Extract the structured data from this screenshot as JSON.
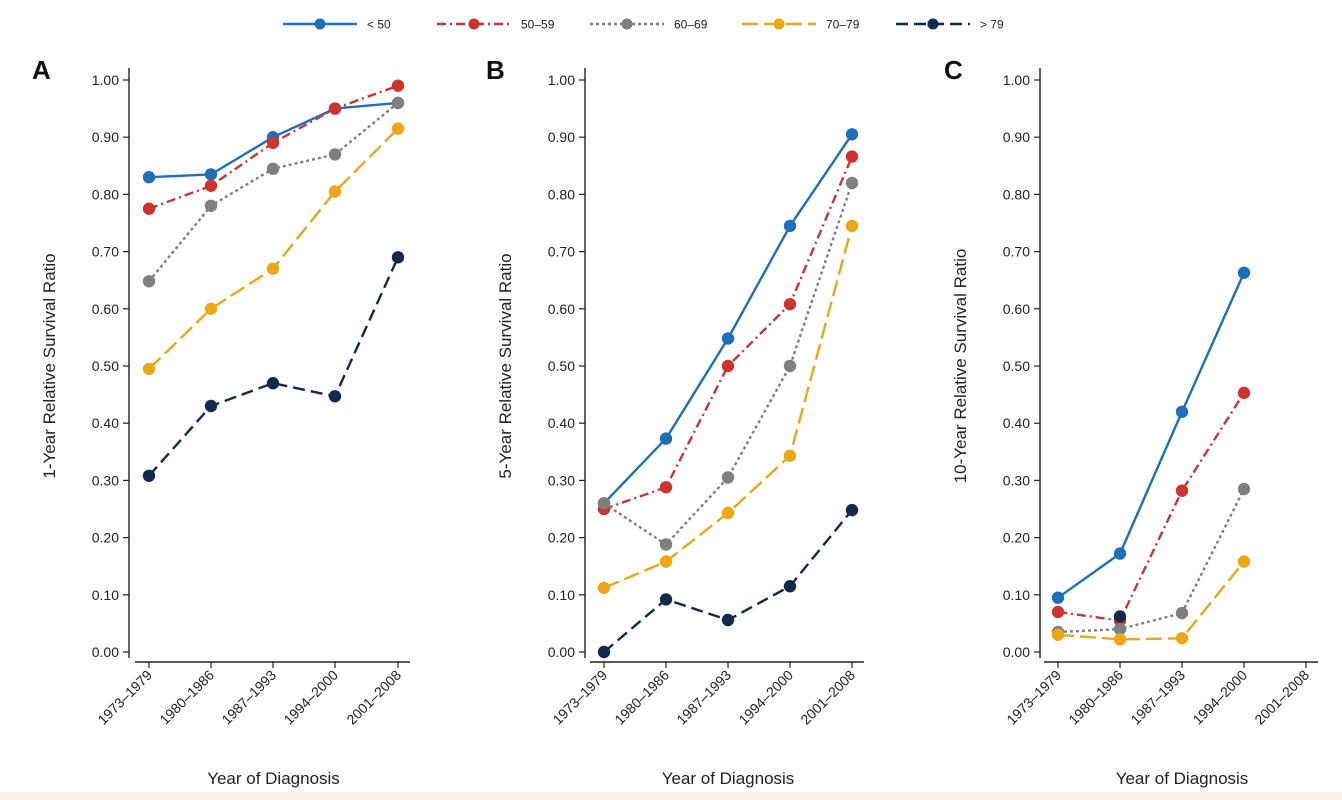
{
  "legend": [
    {
      "label": "< 50",
      "color": "#1f6fb8",
      "dash": "solid"
    },
    {
      "label": "50–59",
      "color": "#cc3333",
      "dash": "dashdot"
    },
    {
      "label": "60–69",
      "color": "#7f7f7f",
      "dash": "dotted"
    },
    {
      "label": "70–79",
      "color": "#e8a817",
      "dash": "longdash"
    },
    {
      "label": "> 79",
      "color": "#14294a",
      "dash": "dashed"
    }
  ],
  "chart_data": [
    {
      "type": "line",
      "panel": "A",
      "title": "",
      "xlabel": "Year of Diagnosis",
      "ylabel": "1-Year Relative Survival Ratio",
      "categories": [
        "1973–1979",
        "1980–1986",
        "1987–1993",
        "1994–2000",
        "2001–2008"
      ],
      "ylim": [
        0,
        1
      ],
      "yticks": [
        "0.00",
        "0.10",
        "0.20",
        "0.30",
        "0.40",
        "0.50",
        "0.60",
        "0.70",
        "0.80",
        "0.90",
        "1.00"
      ],
      "grid": false,
      "series": [
        {
          "name": "< 50",
          "values": [
            0.83,
            0.835,
            0.9,
            0.95,
            0.96
          ]
        },
        {
          "name": "50–59",
          "values": [
            0.775,
            0.815,
            0.89,
            0.95,
            0.99
          ]
        },
        {
          "name": "60–69",
          "values": [
            0.648,
            0.78,
            0.845,
            0.87,
            0.96
          ]
        },
        {
          "name": "70–79",
          "values": [
            0.495,
            0.6,
            0.67,
            0.805,
            0.915
          ]
        },
        {
          "name": "> 79",
          "values": [
            0.308,
            0.43,
            0.47,
            0.447,
            0.69
          ]
        }
      ]
    },
    {
      "type": "line",
      "panel": "B",
      "title": "",
      "xlabel": "Year of Diagnosis",
      "ylabel": "5-Year Relative Survival Ratio",
      "categories": [
        "1973–1979",
        "1980–1986",
        "1987–1993",
        "1994–2000",
        "2001–2008"
      ],
      "ylim": [
        0,
        1
      ],
      "yticks": [
        "0.00",
        "0.10",
        "0.20",
        "0.30",
        "0.40",
        "0.50",
        "0.60",
        "0.70",
        "0.80",
        "0.90",
        "1.00"
      ],
      "grid": false,
      "series": [
        {
          "name": "< 50",
          "values": [
            0.26,
            0.373,
            0.548,
            0.745,
            0.905
          ]
        },
        {
          "name": "50–59",
          "values": [
            0.25,
            0.288,
            0.5,
            0.608,
            0.866
          ]
        },
        {
          "name": "60–69",
          "values": [
            0.26,
            0.188,
            0.305,
            0.5,
            0.82
          ]
        },
        {
          "name": "70–79",
          "values": [
            0.112,
            0.158,
            0.243,
            0.343,
            0.745
          ]
        },
        {
          "name": "> 79",
          "values": [
            0.0,
            0.092,
            0.056,
            0.115,
            0.248
          ]
        }
      ]
    },
    {
      "type": "line",
      "panel": "C",
      "title": "",
      "xlabel": "Year of Diagnosis",
      "ylabel": "10-Year Relative Survival Ratio",
      "categories": [
        "1973–1979",
        "1980–1986",
        "1987–1993",
        "1994–2000",
        "2001–2008"
      ],
      "ylim": [
        0,
        1
      ],
      "yticks": [
        "0.00",
        "0.10",
        "0.20",
        "0.30",
        "0.40",
        "0.50",
        "0.60",
        "0.70",
        "0.80",
        "0.90",
        "1.00"
      ],
      "grid": false,
      "series": [
        {
          "name": "< 50",
          "values": [
            0.095,
            0.172,
            0.42,
            0.663,
            null
          ]
        },
        {
          "name": "50–59",
          "values": [
            0.07,
            0.055,
            0.282,
            0.453,
            null
          ]
        },
        {
          "name": "60–69",
          "values": [
            0.035,
            0.04,
            0.068,
            0.285,
            null
          ]
        },
        {
          "name": "70–79",
          "values": [
            0.03,
            0.022,
            0.024,
            0.158,
            null
          ]
        },
        {
          "name": "> 79",
          "values": [
            null,
            0.062,
            null,
            null,
            null
          ]
        }
      ]
    }
  ]
}
